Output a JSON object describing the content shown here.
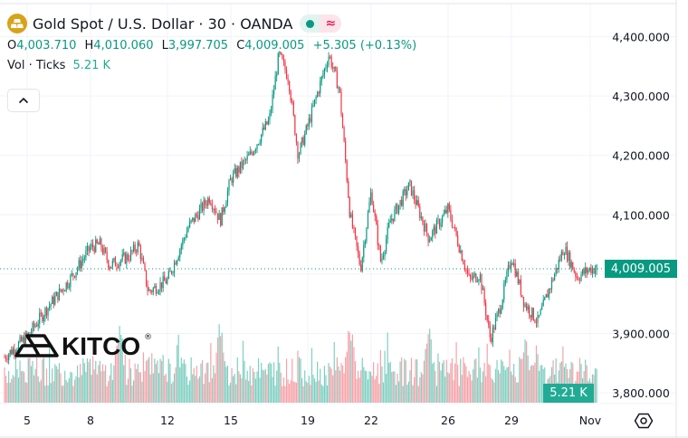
{
  "header": {
    "symbol_icon": "gold-bars-icon",
    "title": "Gold Spot / U.S. Dollar · 30 · OANDA",
    "status_live_icon": "market-open-dot-icon",
    "status_delay_icon": "approx-icon",
    "status_delay_glyph": "≈"
  },
  "ohlc": {
    "o_label": "O",
    "o_value": "4,003.710",
    "h_label": "H",
    "h_value": "4,010.060",
    "l_label": "L",
    "l_value": "3,997.705",
    "c_label": "C",
    "c_value": "4,009.005",
    "change": "+5.305 (+0.13%)"
  },
  "volume_legend": {
    "label": "Vol · Ticks",
    "value": "5.21 K"
  },
  "collapse_button": {
    "icon": "chevron-up-icon",
    "glyph": "^"
  },
  "watermark": {
    "text": "KITCO",
    "reg": "®"
  },
  "price_scale": {
    "labels": [
      "4,400.000",
      "4,300.000",
      "4,200.000",
      "4,100.000",
      "3,900.000",
      "3,800.000"
    ],
    "current_price_label": "4,009.005",
    "current_volume_label": "5.21 K"
  },
  "time_scale": {
    "labels": [
      "5",
      "8",
      "12",
      "15",
      "19",
      "22",
      "26",
      "29",
      "Nov"
    ]
  },
  "settings_icon": "settings-hex-icon",
  "colors": {
    "up": "#089981",
    "down": "#f23645",
    "vol_up": "#7fcfc1",
    "vol_down": "#f5a3a9",
    "grid": "#f0f3fa",
    "label_bg": "#089981"
  },
  "chart_data": {
    "type": "candlestick",
    "title": "Gold Spot / U.S. Dollar · 30 · OANDA",
    "interval": "30",
    "ylim": [
      3800,
      4450
    ],
    "yticks": [
      3800,
      3900,
      4000,
      4100,
      4200,
      4300,
      4400
    ],
    "x_ticks": [
      "5",
      "8",
      "12",
      "15",
      "19",
      "22",
      "26",
      "29",
      "Nov"
    ],
    "grid": true,
    "last_price": 4009.005,
    "price_path": [
      {
        "t": "4",
        "p": 3860
      },
      {
        "t": "5",
        "p": 3895
      },
      {
        "t": "6",
        "p": 3945
      },
      {
        "t": "7",
        "p": 3990
      },
      {
        "t": "8",
        "p": 4045
      },
      {
        "t": "8.5",
        "p": 4050
      },
      {
        "t": "9",
        "p": 4015
      },
      {
        "t": "10",
        "p": 4030
      },
      {
        "t": "10.5",
        "p": 4050
      },
      {
        "t": "11",
        "p": 3970
      },
      {
        "t": "12",
        "p": 3990
      },
      {
        "t": "13",
        "p": 4080
      },
      {
        "t": "14",
        "p": 4130
      },
      {
        "t": "14.5",
        "p": 4090
      },
      {
        "t": "15",
        "p": 4160
      },
      {
        "t": "16",
        "p": 4200
      },
      {
        "t": "17",
        "p": 4260
      },
      {
        "t": "17.5",
        "p": 4370
      },
      {
        "t": "18",
        "p": 4330
      },
      {
        "t": "18.5",
        "p": 4200
      },
      {
        "t": "19",
        "p": 4250
      },
      {
        "t": "20",
        "p": 4370
      },
      {
        "t": "20.5",
        "p": 4310
      },
      {
        "t": "21",
        "p": 4100
      },
      {
        "t": "21.5",
        "p": 4010
      },
      {
        "t": "22",
        "p": 4140
      },
      {
        "t": "22.5",
        "p": 4020
      },
      {
        "t": "23",
        "p": 4090
      },
      {
        "t": "24",
        "p": 4150
      },
      {
        "t": "25",
        "p": 4060
      },
      {
        "t": "26",
        "p": 4110
      },
      {
        "t": "27",
        "p": 3990
      },
      {
        "t": "27.5",
        "p": 4000
      },
      {
        "t": "28",
        "p": 3890
      },
      {
        "t": "28.5",
        "p": 3950
      },
      {
        "t": "29",
        "p": 4030
      },
      {
        "t": "29.5",
        "p": 3950
      },
      {
        "t": "30",
        "p": 3920
      },
      {
        "t": "31",
        "p": 4045
      },
      {
        "t": "31.5",
        "p": 3995
      },
      {
        "t": "Nov",
        "p": 4009
      }
    ],
    "volume": {
      "label": "Vol · Ticks",
      "last": 5.21,
      "unit": "K",
      "peaks": [
        {
          "t": "9.5",
          "v": 15
        },
        {
          "t": "14.5",
          "v": 14
        },
        {
          "t": "21",
          "v": 15
        },
        {
          "t": "25",
          "v": 14
        },
        {
          "t": "29.5",
          "v": 12
        }
      ]
    }
  }
}
